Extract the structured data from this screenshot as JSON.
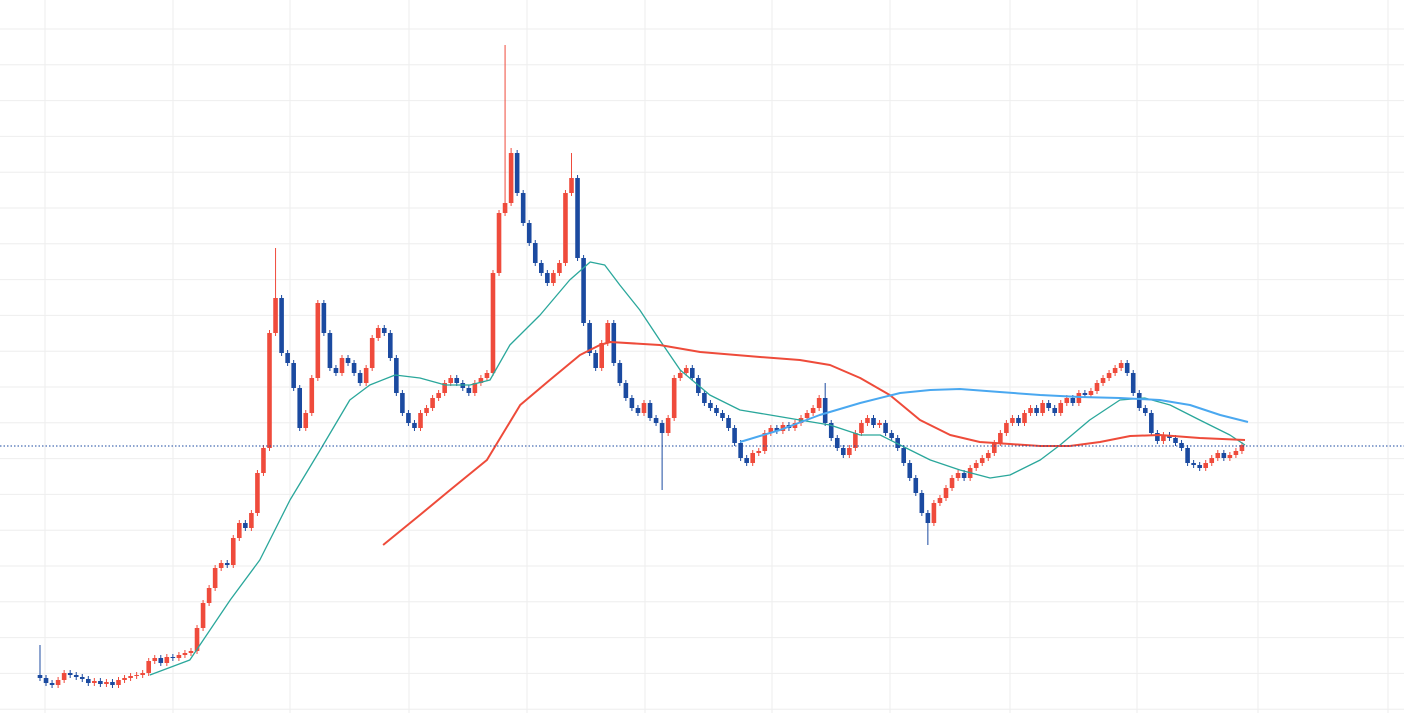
{
  "chart_data": {
    "type": "candlestick",
    "xlim": [
      -6.62,
      225.83
    ],
    "ylim": [
      0,
      713
    ],
    "up_color": "#ef4b3c",
    "down_color": "#1b4aa0",
    "price_line": 267,
    "price_line_color": "#1b4aa0",
    "candles": {
      "open": [
        38,
        35,
        30,
        28,
        33,
        40,
        38,
        36,
        34,
        30,
        32,
        29,
        31,
        28,
        33,
        35,
        37,
        38,
        40,
        52,
        55,
        50,
        56,
        55,
        58,
        60,
        62,
        85,
        110,
        125,
        145,
        150,
        148,
        175,
        190,
        185,
        200,
        240,
        265,
        380,
        415,
        360,
        350,
        325,
        285,
        300,
        335,
        410,
        380,
        345,
        340,
        355,
        350,
        340,
        330,
        345,
        375,
        385,
        380,
        355,
        320,
        300,
        290,
        285,
        300,
        305,
        315,
        320,
        330,
        335,
        330,
        325,
        320,
        330,
        335,
        340,
        440,
        500,
        510,
        560,
        520,
        490,
        470,
        450,
        440,
        430,
        440,
        450,
        520,
        535,
        455,
        390,
        360,
        345,
        370,
        390,
        350,
        330,
        315,
        305,
        300,
        310,
        295,
        290,
        280,
        295,
        335,
        340,
        345,
        335,
        320,
        310,
        305,
        300,
        295,
        285,
        270,
        255,
        250,
        260,
        262,
        280,
        285,
        282,
        288,
        285,
        290,
        295,
        300,
        305,
        315,
        290,
        275,
        265,
        258,
        265,
        280,
        290,
        295,
        288,
        290,
        280,
        275,
        265,
        250,
        235,
        220,
        200,
        190,
        210,
        215,
        225,
        235,
        240,
        235,
        245,
        250,
        255,
        260,
        270,
        280,
        290,
        295,
        290,
        300,
        305,
        300,
        310,
        305,
        300,
        310,
        315,
        310,
        320,
        318,
        322,
        330,
        335,
        340,
        345,
        350,
        340,
        320,
        305,
        300,
        280,
        272,
        278,
        275,
        270,
        265,
        250,
        248,
        245,
        250,
        255,
        260,
        255,
        258,
        262
      ],
      "high": [
        68,
        38,
        33,
        36,
        43,
        43,
        41,
        39,
        37,
        35,
        35,
        34,
        34,
        36,
        38,
        40,
        41,
        43,
        55,
        58,
        58,
        59,
        59,
        61,
        63,
        65,
        88,
        113,
        128,
        148,
        153,
        153,
        178,
        193,
        193,
        203,
        243,
        268,
        383,
        465,
        418,
        363,
        353,
        328,
        303,
        338,
        413,
        413,
        383,
        348,
        358,
        358,
        353,
        343,
        348,
        378,
        388,
        388,
        383,
        358,
        323,
        303,
        293,
        303,
        308,
        318,
        323,
        333,
        338,
        338,
        333,
        328,
        333,
        338,
        343,
        443,
        503,
        668,
        565,
        563,
        523,
        493,
        473,
        453,
        443,
        443,
        453,
        523,
        560,
        538,
        458,
        393,
        363,
        373,
        393,
        393,
        353,
        333,
        318,
        308,
        313,
        313,
        298,
        293,
        298,
        338,
        343,
        348,
        348,
        338,
        323,
        313,
        308,
        303,
        298,
        288,
        273,
        258,
        263,
        265,
        283,
        288,
        288,
        291,
        291,
        293,
        298,
        303,
        308,
        318,
        330,
        293,
        278,
        268,
        268,
        283,
        293,
        298,
        298,
        293,
        293,
        283,
        278,
        268,
        253,
        238,
        223,
        203,
        213,
        218,
        228,
        238,
        243,
        243,
        248,
        253,
        258,
        263,
        273,
        283,
        293,
        298,
        298,
        303,
        308,
        308,
        313,
        313,
        308,
        313,
        318,
        318,
        323,
        323,
        325,
        333,
        338,
        343,
        348,
        353,
        353,
        343,
        323,
        308,
        303,
        283,
        281,
        281,
        278,
        273,
        268,
        253,
        251,
        253,
        258,
        263,
        263,
        261,
        265,
        271
      ],
      "low": [
        32,
        27,
        25,
        25,
        30,
        35,
        33,
        31,
        27,
        27,
        26,
        26,
        25,
        25,
        30,
        32,
        34,
        35,
        37,
        49,
        47,
        47,
        52,
        52,
        55,
        57,
        59,
        82,
        107,
        122,
        142,
        145,
        145,
        172,
        182,
        182,
        197,
        237,
        262,
        377,
        357,
        347,
        322,
        282,
        282,
        297,
        332,
        377,
        342,
        337,
        337,
        347,
        337,
        327,
        327,
        342,
        372,
        377,
        352,
        317,
        297,
        287,
        282,
        282,
        297,
        302,
        312,
        317,
        327,
        327,
        322,
        317,
        317,
        327,
        332,
        337,
        437,
        497,
        507,
        517,
        487,
        467,
        447,
        437,
        427,
        427,
        437,
        447,
        517,
        452,
        387,
        357,
        342,
        342,
        367,
        347,
        327,
        312,
        302,
        297,
        297,
        292,
        287,
        223,
        277,
        292,
        332,
        337,
        332,
        317,
        307,
        302,
        297,
        292,
        282,
        267,
        252,
        247,
        247,
        257,
        259,
        277,
        279,
        279,
        282,
        282,
        287,
        292,
        297,
        302,
        287,
        272,
        262,
        255,
        255,
        262,
        277,
        287,
        285,
        285,
        277,
        272,
        262,
        247,
        232,
        217,
        197,
        168,
        187,
        207,
        212,
        222,
        232,
        232,
        232,
        242,
        247,
        252,
        257,
        267,
        277,
        287,
        287,
        287,
        297,
        297,
        297,
        302,
        297,
        297,
        307,
        307,
        307,
        315,
        315,
        319,
        327,
        332,
        337,
        342,
        337,
        317,
        302,
        297,
        277,
        269,
        269,
        272,
        267,
        262,
        247,
        245,
        242,
        242,
        247,
        252,
        252,
        252,
        255,
        259
      ],
      "close": [
        35,
        30,
        28,
        33,
        40,
        38,
        36,
        34,
        30,
        32,
        29,
        31,
        28,
        33,
        35,
        37,
        38,
        40,
        52,
        55,
        50,
        56,
        55,
        58,
        60,
        62,
        85,
        110,
        125,
        145,
        150,
        148,
        175,
        190,
        185,
        200,
        240,
        265,
        380,
        415,
        360,
        350,
        325,
        285,
        300,
        335,
        410,
        380,
        345,
        340,
        355,
        350,
        340,
        330,
        345,
        375,
        385,
        380,
        355,
        320,
        300,
        290,
        285,
        300,
        305,
        315,
        320,
        330,
        335,
        330,
        325,
        320,
        330,
        335,
        340,
        440,
        500,
        510,
        560,
        520,
        490,
        470,
        450,
        440,
        430,
        440,
        450,
        520,
        535,
        455,
        390,
        360,
        345,
        370,
        390,
        350,
        330,
        315,
        305,
        300,
        310,
        295,
        290,
        280,
        295,
        335,
        340,
        345,
        335,
        320,
        310,
        305,
        300,
        295,
        285,
        270,
        255,
        250,
        260,
        262,
        280,
        285,
        282,
        288,
        285,
        290,
        295,
        300,
        305,
        315,
        290,
        275,
        265,
        258,
        265,
        280,
        290,
        295,
        288,
        290,
        280,
        275,
        265,
        250,
        235,
        220,
        200,
        190,
        210,
        215,
        225,
        235,
        240,
        235,
        245,
        250,
        255,
        260,
        270,
        280,
        290,
        295,
        290,
        300,
        305,
        300,
        310,
        305,
        300,
        310,
        315,
        310,
        320,
        318,
        322,
        330,
        335,
        340,
        345,
        350,
        340,
        320,
        305,
        300,
        280,
        272,
        278,
        275,
        270,
        265,
        250,
        248,
        245,
        250,
        255,
        260,
        255,
        258,
        262,
        268
      ]
    },
    "series": [
      {
        "color": "#2aa79b",
        "width": 1.3,
        "x": [
          18.2,
          24.8,
          31.5,
          36.4,
          41.4,
          46.4,
          51.3,
          54.6,
          58.8,
          62.9,
          67.1,
          71.2,
          74.5,
          77.8,
          82.8,
          87.7,
          91.1,
          93.5,
          96,
          99.3,
          102.6,
          106,
          110.9,
          115.9,
          120.9,
          125.8,
          130.8,
          135.8,
          139.1,
          142.4,
          147.4,
          152.3,
          157.3,
          160.6,
          165.6,
          168.9,
          173.8,
          178.8,
          182.9,
          187.1,
          192,
          197,
          199.5
        ],
        "values": [
          38,
          53,
          113,
          153,
          213,
          263,
          313,
          328,
          338,
          335,
          328,
          328,
          333,
          368,
          398,
          433,
          451,
          448,
          428,
          403,
          373,
          343,
          318,
          303,
          298,
          293,
          288,
          278,
          278,
          268,
          253,
          243,
          235,
          238,
          253,
          268,
          293,
          313,
          315,
          308,
          293,
          278,
          268
        ]
      },
      {
        "color": "#ee4b3a",
        "width": 2,
        "x": [
          56.8,
          62.9,
          67.9,
          74,
          79.5,
          84.4,
          89.4,
          92.7,
          94.4,
          102.6,
          109.3,
          119.2,
          125.8,
          130.8,
          135.8,
          140.7,
          145.7,
          150.7,
          155.6,
          160.6,
          165.6,
          170.5,
          175.5,
          180.5,
          185.4,
          192,
          199.5
        ],
        "values": [
          168,
          198,
          223,
          253,
          308,
          333,
          358,
          368,
          371,
          368,
          361,
          356,
          353,
          348,
          335,
          318,
          293,
          278,
          271,
          269,
          267,
          267,
          271,
          277,
          278,
          275,
          273
        ]
      },
      {
        "color": "#4aa8f0",
        "width": 2,
        "x": [
          115.9,
          122.5,
          129.1,
          135.8,
          142.4,
          147.4,
          152.3,
          158.9,
          165.6,
          172.2,
          178.8,
          185.4,
          190.4,
          195.4,
          200
        ],
        "values": [
          271,
          283,
          298,
          310,
          320,
          323,
          324,
          321,
          318,
          316,
          315,
          313,
          308,
          298,
          291
        ]
      }
    ]
  }
}
